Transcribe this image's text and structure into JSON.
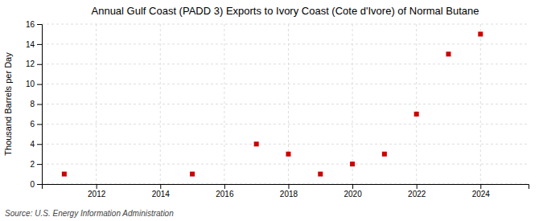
{
  "chart_data": {
    "type": "scatter",
    "title": "Annual Gulf Coast (PADD 3) Exports to Ivory Coast (Cote d'Ivore) of Normal Butane",
    "ylabel": "Thousand Barrels per Day",
    "annotations": [
      "Source: U.S. Energy Information Administration"
    ],
    "x": [
      2011,
      2015,
      2017,
      2018,
      2019,
      2020,
      2021,
      2022,
      2023,
      2024
    ],
    "values": [
      1,
      1,
      4,
      3,
      1,
      2,
      3,
      7,
      13,
      15
    ],
    "color": "#cc0000",
    "marker": "square",
    "xlim": [
      2010.3,
      2025.5
    ],
    "xticks": [
      2012,
      2014,
      2016,
      2018,
      2020,
      2022,
      2024
    ],
    "ylim": [
      0,
      16
    ],
    "yticks": [
      0,
      2,
      4,
      6,
      8,
      10,
      12,
      14,
      16
    ],
    "grid": true
  }
}
